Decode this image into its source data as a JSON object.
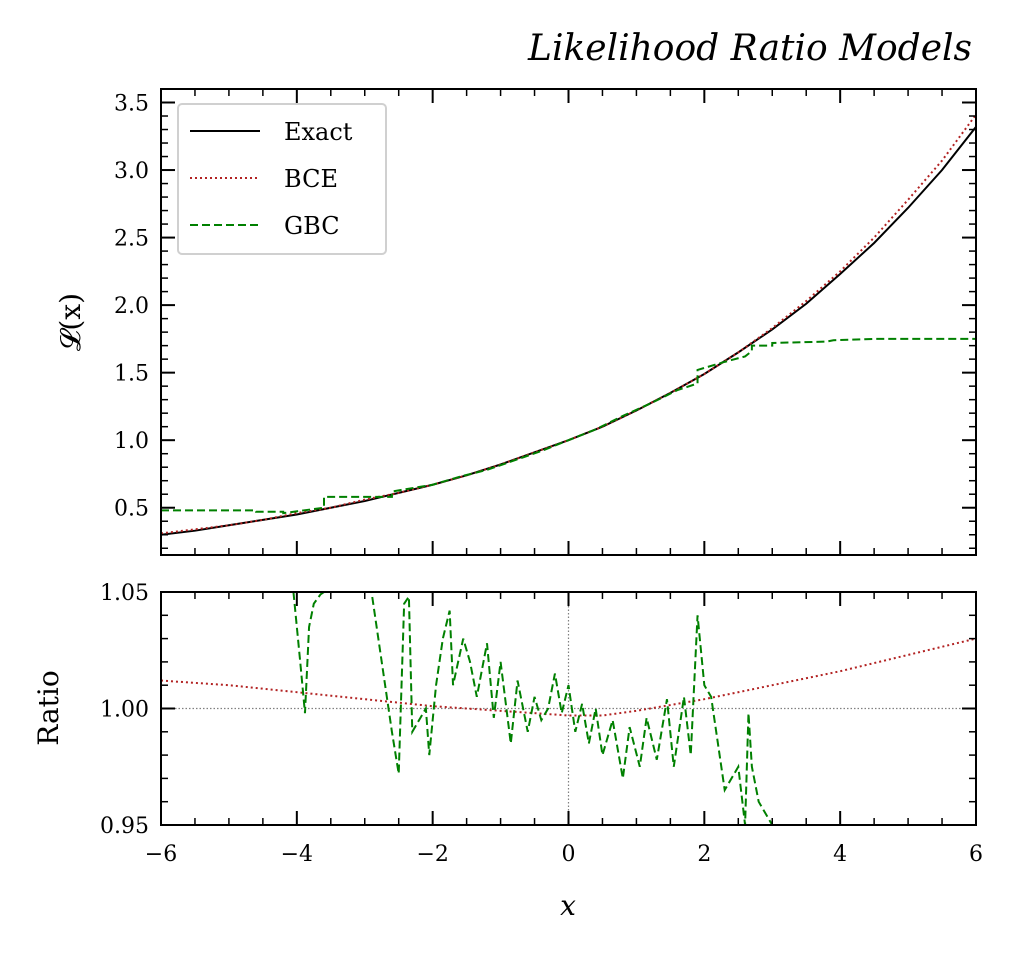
{
  "figure": {
    "title": "Likelihood Ratio Models"
  },
  "chart_data": [
    {
      "type": "line",
      "panel": "top",
      "title": "Likelihood Ratio Models",
      "xlabel": "",
      "ylabel": "𝓛(x)",
      "xlim": [
        -6,
        6
      ],
      "ylim": [
        0.15,
        3.6
      ],
      "x_ticks": [
        -6,
        -4,
        -2,
        0,
        2,
        4,
        6
      ],
      "x_tick_labels_visible": false,
      "y_ticks": [
        0.5,
        1.0,
        1.5,
        2.0,
        2.5,
        3.0,
        3.5
      ],
      "y_tick_labels": [
        "0.5",
        "1.0",
        "1.5",
        "2.0",
        "2.5",
        "3.0",
        "3.5"
      ],
      "grid": false,
      "legend_position": "upper-left",
      "series": [
        {
          "name": "Exact",
          "color": "#000000",
          "style": "solid",
          "x": [
            -6,
            -5.5,
            -5,
            -4.5,
            -4,
            -3.5,
            -3,
            -2.5,
            -2,
            -1.5,
            -1,
            -0.5,
            0,
            0.5,
            1,
            1.5,
            2,
            2.5,
            3,
            3.5,
            4,
            4.5,
            5,
            5.5,
            6
          ],
          "y": [
            0.3,
            0.33,
            0.37,
            0.41,
            0.45,
            0.5,
            0.55,
            0.61,
            0.67,
            0.74,
            0.82,
            0.91,
            1.0,
            1.1,
            1.22,
            1.35,
            1.49,
            1.65,
            1.82,
            2.01,
            2.23,
            2.46,
            2.72,
            3.0,
            3.32
          ]
        },
        {
          "name": "BCE",
          "color": "#b22222",
          "style": "dotted",
          "x": [
            -6,
            -5.5,
            -5,
            -4.5,
            -4,
            -3.5,
            -3,
            -2.5,
            -2,
            -1.5,
            -1,
            -0.5,
            0,
            0.5,
            1,
            1.5,
            2,
            2.5,
            3,
            3.5,
            4,
            4.5,
            5,
            5.5,
            6
          ],
          "y": [
            0.31,
            0.34,
            0.37,
            0.41,
            0.46,
            0.5,
            0.56,
            0.61,
            0.67,
            0.74,
            0.82,
            0.91,
            1.0,
            1.1,
            1.22,
            1.35,
            1.49,
            1.65,
            1.83,
            2.03,
            2.25,
            2.5,
            2.78,
            3.07,
            3.41
          ]
        },
        {
          "name": "GBC",
          "color": "#008000",
          "style": "dashed",
          "x": [
            -6,
            -4.6,
            -4.6,
            -4.2,
            -4.2,
            -3.6,
            -3.6,
            -2.6,
            -2.6,
            -2.0,
            -1.6,
            -1.2,
            -0.8,
            -0.4,
            0,
            0.4,
            0.8,
            1.2,
            1.6,
            1.9,
            1.9,
            2.3,
            2.6,
            2.7,
            2.7,
            3.0,
            3.0,
            3.8,
            3.9,
            4.5,
            5.0,
            6.0
          ],
          "y": [
            0.48,
            0.48,
            0.47,
            0.47,
            0.46,
            0.5,
            0.58,
            0.58,
            0.62,
            0.67,
            0.73,
            0.78,
            0.85,
            0.92,
            1.0,
            1.08,
            1.18,
            1.27,
            1.37,
            1.42,
            1.52,
            1.58,
            1.62,
            1.66,
            1.7,
            1.7,
            1.72,
            1.73,
            1.74,
            1.75,
            1.75,
            1.75
          ]
        }
      ]
    },
    {
      "type": "line",
      "panel": "bottom",
      "xlabel": "x",
      "ylabel": "Ratio",
      "xlim": [
        -6,
        6
      ],
      "ylim": [
        0.95,
        1.05
      ],
      "x_ticks": [
        -6,
        -4,
        -2,
        0,
        2,
        4,
        6
      ],
      "x_tick_labels": [
        "−6",
        "−4",
        "−2",
        "0",
        "2",
        "4",
        "6"
      ],
      "y_ticks": [
        0.95,
        1.0,
        1.05
      ],
      "y_tick_labels": [
        "0.95",
        "1.00",
        "1.05"
      ],
      "grid": false,
      "reference_lines": {
        "y": 1.0,
        "x": 0
      },
      "series": [
        {
          "name": "BCE",
          "color": "#b22222",
          "style": "dotted",
          "x": [
            -6,
            -5,
            -4,
            -3,
            -2,
            -1,
            0,
            0.5,
            1,
            2,
            3,
            4,
            5,
            6
          ],
          "y": [
            1.012,
            1.01,
            1.007,
            1.004,
            1.001,
            0.999,
            0.997,
            0.997,
            0.999,
            1.004,
            1.01,
            1.016,
            1.023,
            1.03
          ]
        },
        {
          "name": "GBC",
          "color": "#008000",
          "style": "dashed",
          "x": [
            -4.05,
            -3.95,
            -3.88,
            -3.82,
            -3.75,
            -3.65,
            -3.6,
            -2.9,
            -2.6,
            -2.5,
            -2.42,
            -2.35,
            -2.3,
            -2.1,
            -2.05,
            -1.95,
            -1.85,
            -1.75,
            -1.7,
            -1.55,
            -1.45,
            -1.35,
            -1.2,
            -1.1,
            -1.0,
            -0.85,
            -0.75,
            -0.6,
            -0.5,
            -0.4,
            -0.3,
            -0.2,
            -0.1,
            0.0,
            0.1,
            0.2,
            0.3,
            0.4,
            0.5,
            0.65,
            0.8,
            0.9,
            1.05,
            1.15,
            1.3,
            1.45,
            1.55,
            1.7,
            1.8,
            1.9,
            2.0,
            2.1,
            2.2,
            2.3,
            2.5,
            2.6,
            2.65,
            2.7,
            2.8,
            2.9,
            3.0
          ],
          "y": [
            1.05,
            1.02,
            0.998,
            1.035,
            1.045,
            1.049,
            1.05,
            1.05,
            0.99,
            0.972,
            1.045,
            1.048,
            0.99,
            1.0,
            0.98,
            1.01,
            1.03,
            1.042,
            1.01,
            1.03,
            1.02,
            1.005,
            1.028,
            0.996,
            1.02,
            0.985,
            1.012,
            0.99,
            1.005,
            0.995,
            1.0,
            1.015,
            0.998,
            1.01,
            0.99,
            1.002,
            0.985,
            1.0,
            0.98,
            0.995,
            0.97,
            0.992,
            0.975,
            0.996,
            0.978,
            1.004,
            0.975,
            1.005,
            0.98,
            1.04,
            1.01,
            1.005,
            0.985,
            0.965,
            0.975,
            0.95,
            0.998,
            0.975,
            0.96,
            0.955,
            0.95
          ]
        }
      ]
    }
  ]
}
